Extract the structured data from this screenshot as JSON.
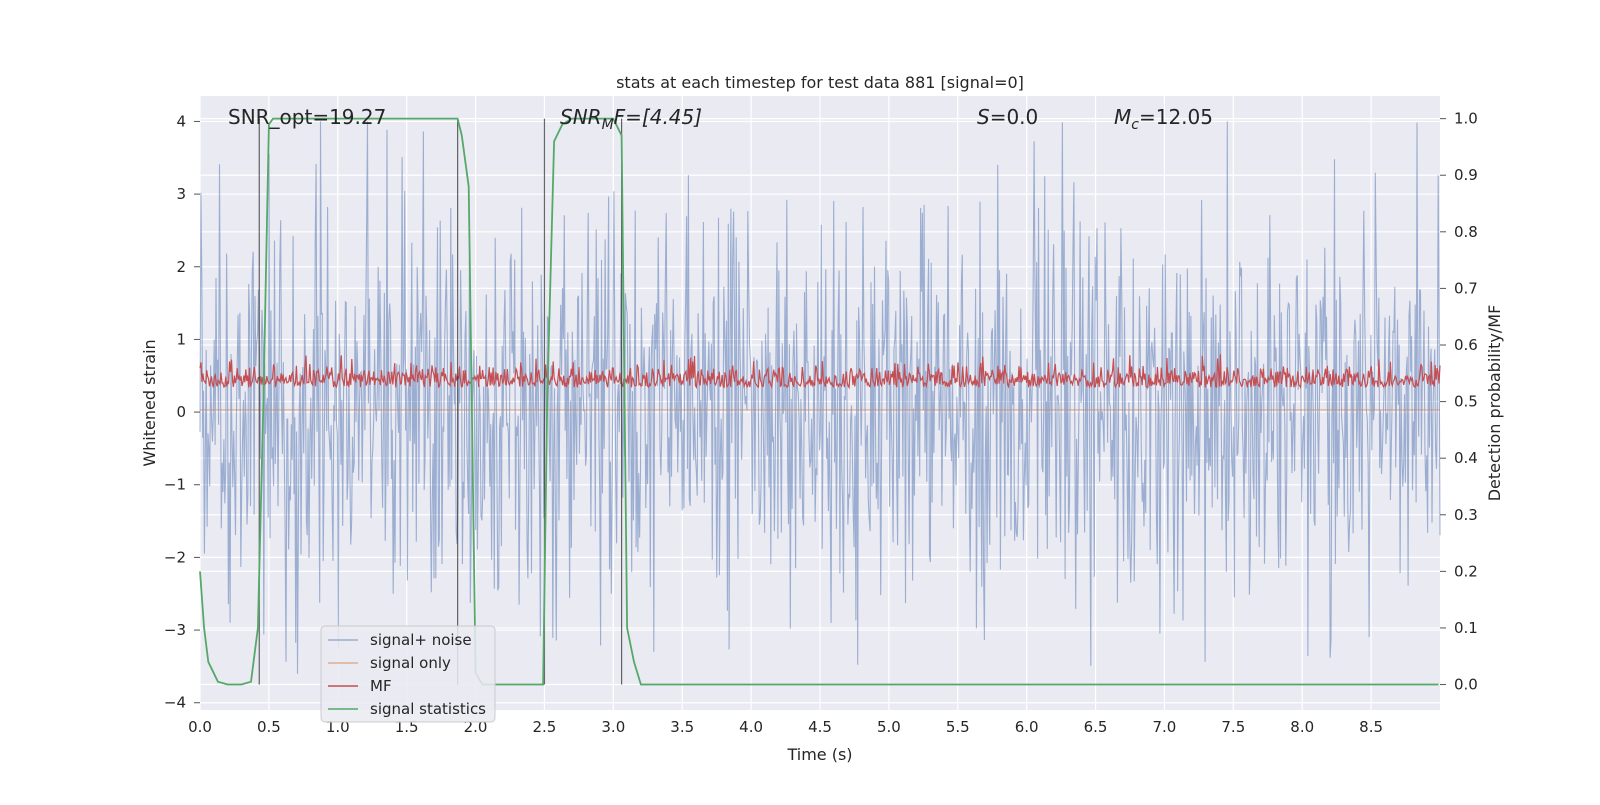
{
  "chart_data": {
    "type": "line",
    "title": "stats at each timestep for test data 881 [signal=0]",
    "xlabel": "Time (s)",
    "ylabel": "Whitened strain",
    "y2label": "Detection probability/MF",
    "xlim": [
      0.0,
      9.0
    ],
    "ylim": [
      -4.1,
      4.35
    ],
    "y2lim": [
      -0.045,
      1.04
    ],
    "xticks": [
      "0.0",
      "0.5",
      "1.0",
      "1.5",
      "2.0",
      "2.5",
      "3.0",
      "3.5",
      "4.0",
      "4.5",
      "5.0",
      "5.5",
      "6.0",
      "6.5",
      "7.0",
      "7.5",
      "8.0",
      "8.5"
    ],
    "yticks": [
      "4",
      "3",
      "2",
      "1",
      "0",
      "−1",
      "−2",
      "−3",
      "−4"
    ],
    "y2ticks": [
      "1.0",
      "0.9",
      "0.8",
      "0.7",
      "0.6",
      "0.5",
      "0.4",
      "0.3",
      "0.2",
      "0.1",
      "0.0"
    ],
    "grid": true,
    "legend_position": "lower-left",
    "annotations": {
      "snr_opt": "SNR_opt=19.27",
      "snr_mf_sym": "SNR",
      "snr_mf_sub": "M",
      "snr_mf_rest": "F=[4.45]",
      "s_sym": "S",
      "s_rest": "=0.0",
      "mc_sym": "M",
      "mc_sub": "c",
      "mc_rest": "=12.05"
    },
    "vlines_x": [
      0.43,
      1.87,
      2.5,
      3.06
    ],
    "vline_range_y2": [
      0.0,
      1.0
    ],
    "series": [
      {
        "name": "signal+ noise",
        "color": "#4c72b0",
        "description": "dense whitened strain samples, roughly within -3.6 to 4.0",
        "envelope_y": [
          -3.6,
          4.0
        ],
        "n_samples": 1400
      },
      {
        "name": "signal only",
        "color": "#dd8452",
        "values_const_y": 0.03
      },
      {
        "name": "MF",
        "color": "#c44e52",
        "axis": "right",
        "range_y2": [
          0.5,
          0.6
        ]
      },
      {
        "name": "signal statistics",
        "color": "#55a868",
        "axis": "right",
        "x": [
          0.0,
          0.03,
          0.06,
          0.1,
          0.13,
          0.2,
          0.3,
          0.37,
          0.42,
          0.46,
          0.5,
          0.53,
          0.6,
          1.0,
          1.5,
          1.83,
          1.87,
          1.9,
          1.95,
          2.0,
          2.05,
          2.1,
          2.2,
          2.3,
          2.4,
          2.49,
          2.52,
          2.57,
          2.63,
          2.7,
          2.9,
          3.0,
          3.06,
          3.1,
          3.15,
          3.2,
          3.3,
          4.0,
          5.0,
          6.0,
          7.0,
          8.0,
          8.99
        ],
        "y": [
          0.2,
          0.1,
          0.04,
          0.02,
          0.005,
          0.0,
          0.0,
          0.005,
          0.1,
          0.5,
          0.99,
          1.0,
          1.0,
          1.0,
          1.0,
          1.0,
          1.0,
          0.97,
          0.88,
          0.02,
          0.0,
          0.0,
          0.0,
          0.0,
          0.0,
          0.0,
          0.5,
          0.96,
          0.99,
          1.0,
          1.0,
          1.0,
          0.97,
          0.1,
          0.04,
          0.0,
          0.0,
          0.0,
          0.0,
          0.0,
          0.0,
          0.0,
          0.0
        ]
      }
    ]
  }
}
